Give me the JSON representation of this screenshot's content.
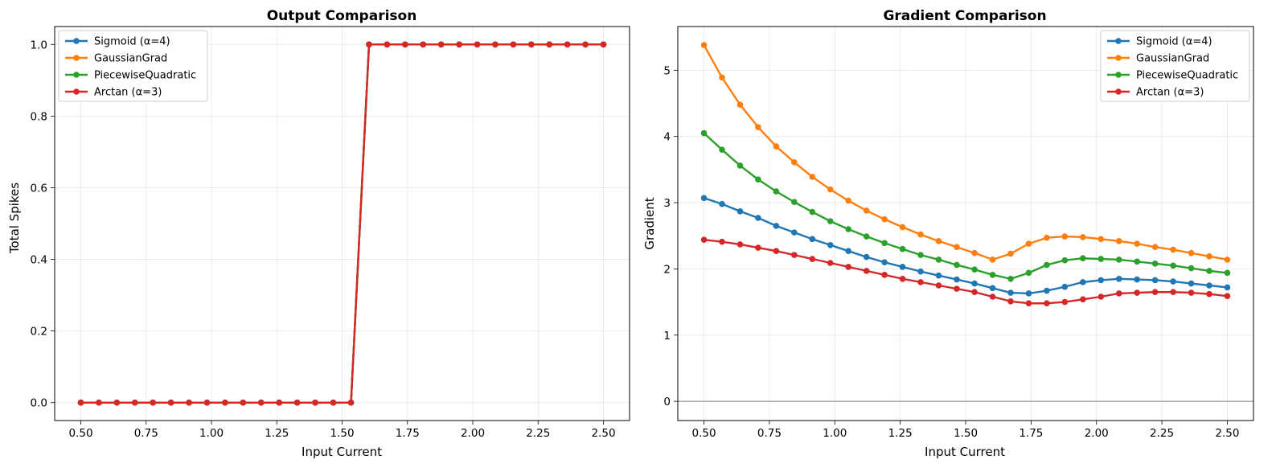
{
  "chart_data": [
    {
      "type": "line",
      "title": "Output Comparison",
      "xlabel": "Input Current",
      "ylabel": "Total Spikes",
      "xlim": [
        0.4,
        2.6
      ],
      "ylim": [
        -0.05,
        1.05
      ],
      "xticks": [
        "0.50",
        "0.75",
        "1.00",
        "1.25",
        "1.50",
        "1.75",
        "2.00",
        "2.25",
        "2.50"
      ],
      "yticks": [
        "0.0",
        "0.2",
        "0.4",
        "0.6",
        "0.8",
        "1.0"
      ],
      "grid": true,
      "legend_position": "top-left",
      "x": [
        0.5,
        0.569,
        0.638,
        0.707,
        0.776,
        0.845,
        0.914,
        0.983,
        1.052,
        1.121,
        1.19,
        1.259,
        1.328,
        1.397,
        1.466,
        1.534,
        1.603,
        1.672,
        1.741,
        1.81,
        1.879,
        1.948,
        2.017,
        2.086,
        2.155,
        2.224,
        2.293,
        2.362,
        2.431,
        2.5
      ],
      "series": [
        {
          "name": "Sigmoid (α=4)",
          "color": "#1f77b4",
          "values": [
            0,
            0,
            0,
            0,
            0,
            0,
            0,
            0,
            0,
            0,
            0,
            0,
            0,
            0,
            0,
            0,
            1,
            1,
            1,
            1,
            1,
            1,
            1,
            1,
            1,
            1,
            1,
            1,
            1,
            1
          ]
        },
        {
          "name": "GaussianGrad",
          "color": "#ff7f0e",
          "values": [
            0,
            0,
            0,
            0,
            0,
            0,
            0,
            0,
            0,
            0,
            0,
            0,
            0,
            0,
            0,
            0,
            1,
            1,
            1,
            1,
            1,
            1,
            1,
            1,
            1,
            1,
            1,
            1,
            1,
            1
          ]
        },
        {
          "name": "PiecewiseQuadratic",
          "color": "#2ca02c",
          "values": [
            0,
            0,
            0,
            0,
            0,
            0,
            0,
            0,
            0,
            0,
            0,
            0,
            0,
            0,
            0,
            0,
            1,
            1,
            1,
            1,
            1,
            1,
            1,
            1,
            1,
            1,
            1,
            1,
            1,
            1
          ]
        },
        {
          "name": "Arctan (α=3)",
          "color": "#d62728",
          "values": [
            0,
            0,
            0,
            0,
            0,
            0,
            0,
            0,
            0,
            0,
            0,
            0,
            0,
            0,
            0,
            0,
            1,
            1,
            1,
            1,
            1,
            1,
            1,
            1,
            1,
            1,
            1,
            1,
            1,
            1
          ]
        }
      ]
    },
    {
      "type": "line",
      "title": "Gradient Comparison",
      "xlabel": "Input Current",
      "ylabel": "Gradient",
      "xlim": [
        0.4,
        2.6
      ],
      "ylim": [
        -0.29,
        5.66
      ],
      "xticks": [
        "0.50",
        "0.75",
        "1.00",
        "1.25",
        "1.50",
        "1.75",
        "2.00",
        "2.25",
        "2.50"
      ],
      "yticks": [
        "0",
        "1",
        "2",
        "3",
        "4",
        "5"
      ],
      "grid": true,
      "legend_position": "top-right",
      "hline_y": 0,
      "x": [
        0.5,
        0.569,
        0.638,
        0.707,
        0.776,
        0.845,
        0.914,
        0.983,
        1.052,
        1.121,
        1.19,
        1.259,
        1.328,
        1.397,
        1.466,
        1.534,
        1.603,
        1.672,
        1.741,
        1.81,
        1.879,
        1.948,
        2.017,
        2.086,
        2.155,
        2.224,
        2.293,
        2.362,
        2.431,
        2.5
      ],
      "series": [
        {
          "name": "Sigmoid (α=4)",
          "color": "#1f77b4",
          "values": [
            3.07,
            2.98,
            2.87,
            2.77,
            2.65,
            2.55,
            2.45,
            2.36,
            2.27,
            2.18,
            2.1,
            2.03,
            1.96,
            1.9,
            1.84,
            1.78,
            1.71,
            1.64,
            1.63,
            1.67,
            1.73,
            1.8,
            1.83,
            1.85,
            1.84,
            1.83,
            1.81,
            1.78,
            1.75,
            1.72
          ]
        },
        {
          "name": "GaussianGrad",
          "color": "#ff7f0e",
          "values": [
            5.38,
            4.89,
            4.48,
            4.14,
            3.85,
            3.61,
            3.39,
            3.2,
            3.03,
            2.88,
            2.75,
            2.63,
            2.52,
            2.42,
            2.33,
            2.24,
            2.14,
            2.23,
            2.38,
            2.47,
            2.49,
            2.48,
            2.45,
            2.42,
            2.38,
            2.33,
            2.29,
            2.24,
            2.19,
            2.14
          ]
        },
        {
          "name": "PiecewiseQuadratic",
          "color": "#2ca02c",
          "values": [
            4.05,
            3.8,
            3.56,
            3.35,
            3.17,
            3.01,
            2.86,
            2.72,
            2.6,
            2.49,
            2.39,
            2.3,
            2.21,
            2.14,
            2.06,
            1.99,
            1.91,
            1.85,
            1.94,
            2.06,
            2.13,
            2.16,
            2.15,
            2.14,
            2.11,
            2.08,
            2.05,
            2.01,
            1.97,
            1.94
          ]
        },
        {
          "name": "Arctan (α=3)",
          "color": "#d62728",
          "values": [
            2.44,
            2.41,
            2.37,
            2.32,
            2.27,
            2.21,
            2.15,
            2.09,
            2.03,
            1.97,
            1.91,
            1.85,
            1.8,
            1.75,
            1.7,
            1.65,
            1.58,
            1.51,
            1.48,
            1.48,
            1.5,
            1.54,
            1.58,
            1.63,
            1.64,
            1.65,
            1.65,
            1.64,
            1.62,
            1.59
          ]
        }
      ]
    }
  ]
}
